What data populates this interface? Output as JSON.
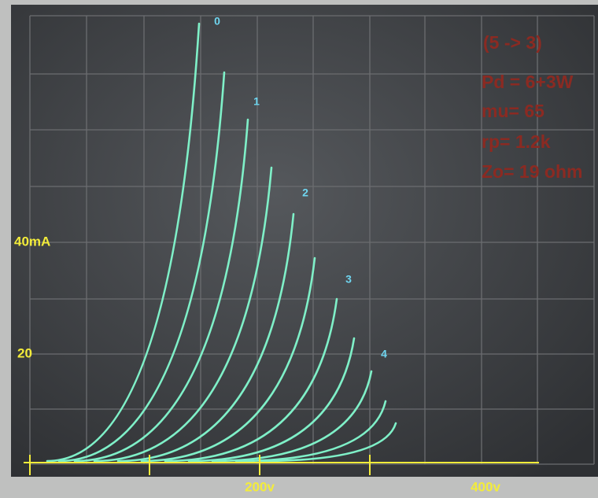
{
  "curve_labels": [
    "0",
    "1",
    "2",
    "3",
    "4"
  ],
  "annotations": [
    "(5 -> 3)",
    "Pd = 6+3W",
    "mu= 65",
    "rp= 1.2k",
    "Zo= 19 ohm"
  ],
  "axis_labels": [
    "40mA",
    "20",
    "200v",
    "400v"
  ]
}
